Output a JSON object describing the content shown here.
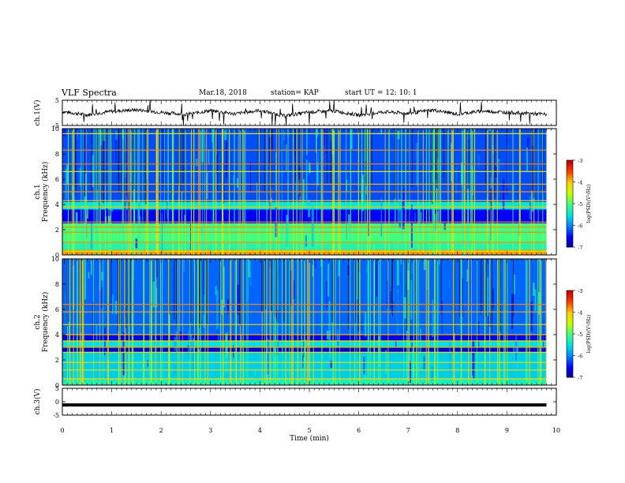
{
  "header": {
    "title": "VLF Spectra",
    "date": "Mar.18, 2018",
    "station": "station= KAP",
    "start": "start  UT =   12: 10: 1"
  },
  "chart_data": [
    {
      "type": "line",
      "id": "ch1-waveform",
      "ylabel": "ch.1(V)",
      "ylim": [
        -5,
        5
      ],
      "yticks": [
        "5",
        "-5"
      ],
      "xlim": [
        0,
        10
      ],
      "description_values": "noisy waveform centred near 0 V with amplitude ~1.5 V and occasional spikes to +/-5 V, ending at ~9.8 min",
      "x": [
        0,
        0.5,
        1,
        1.5,
        2,
        2.5,
        3,
        3.5,
        4,
        4.5,
        5,
        5.5,
        6,
        6.5,
        7,
        7.5,
        8,
        8.5,
        9,
        9.5,
        9.8
      ],
      "y": [
        0.5,
        -0.8,
        0.6,
        1.2,
        0.2,
        -0.6,
        0.9,
        -0.4,
        1.0,
        -1.2,
        0.3,
        0.8,
        -0.9,
        0.4,
        -0.2,
        1.1,
        -0.5,
        0.7,
        0.2,
        -0.3,
        -0.6
      ]
    },
    {
      "type": "heatmap",
      "id": "ch1-spectrogram",
      "ylabel_line1": "ch.1",
      "ylabel_line2": "Frequency (kHz)",
      "ylim": [
        0,
        10
      ],
      "yticks": [
        "0",
        "2",
        "4",
        "6",
        "8",
        "10"
      ],
      "xlim": [
        0,
        10
      ],
      "data_end_min": 9.8,
      "colorbar": {
        "label": "log(PSD)(V²/Hz)",
        "range": [
          -7,
          -3
        ],
        "ticks": [
          "-3",
          "-4",
          "-5",
          "-6",
          "-7"
        ]
      },
      "bands_khz": [
        {
          "from": 0.0,
          "to": 0.4,
          "level": -3.8
        },
        {
          "from": 0.4,
          "to": 1.0,
          "level": -5.2
        },
        {
          "from": 1.0,
          "to": 2.5,
          "level": -5.0
        },
        {
          "from": 2.5,
          "to": 3.6,
          "level": -6.5
        },
        {
          "from": 3.6,
          "to": 4.2,
          "level": -5.4
        },
        {
          "from": 4.2,
          "to": 10.0,
          "level": -6.2
        }
      ],
      "lines_khz": [
        0.3,
        1.0,
        1.8,
        2.2,
        2.6,
        3.8,
        4.3,
        5.0,
        5.6,
        6.6,
        7.2,
        8.3,
        9.6
      ]
    },
    {
      "type": "heatmap",
      "id": "ch2-spectrogram",
      "ylabel_line1": "ch.2",
      "ylabel_line2": "Frequency (kHz)",
      "ylim": [
        0,
        10
      ],
      "yticks": [
        "0",
        "2",
        "4",
        "6",
        "8",
        "10"
      ],
      "xlim": [
        0,
        10
      ],
      "data_end_min": 9.8,
      "colorbar": {
        "label": "log(PSD)(V²/Hz)",
        "range": [
          -7,
          -3
        ],
        "ticks": [
          "-3",
          "-4",
          "-5",
          "-6",
          "-7"
        ]
      },
      "bands_khz": [
        {
          "from": 0.0,
          "to": 0.5,
          "level": -5.3
        },
        {
          "from": 0.5,
          "to": 2.6,
          "level": -5.6
        },
        {
          "from": 2.6,
          "to": 3.0,
          "level": -6.7
        },
        {
          "from": 3.0,
          "to": 3.5,
          "level": -5.5
        },
        {
          "from": 3.5,
          "to": 4.0,
          "level": -6.6
        },
        {
          "from": 4.0,
          "to": 10.0,
          "level": -6.1
        }
      ],
      "lines_khz": [
        0.5,
        1.2,
        1.8,
        2.6,
        3.0,
        3.5,
        4.0,
        4.8,
        5.8,
        6.4
      ]
    },
    {
      "type": "line",
      "id": "ch3-waveform",
      "ylabel": "ch.3(V)",
      "ylim": [
        -5,
        5
      ],
      "yticks": [
        "5",
        "0",
        "-5"
      ],
      "xlim": [
        0,
        10
      ],
      "xlabel": "Time  (min)",
      "xticks": [
        "0",
        "1",
        "2",
        "3",
        "4",
        "5",
        "6",
        "7",
        "8",
        "9",
        "10"
      ],
      "x": [
        0,
        9.8
      ],
      "y": [
        -1.2,
        -1.2
      ]
    }
  ],
  "colors": {
    "colormap": [
      "#000088",
      "#0000ff",
      "#0080ff",
      "#00e0e0",
      "#40ff80",
      "#c0ff00",
      "#ffd000",
      "#ff4000",
      "#c00000"
    ],
    "axes": "#000000"
  }
}
